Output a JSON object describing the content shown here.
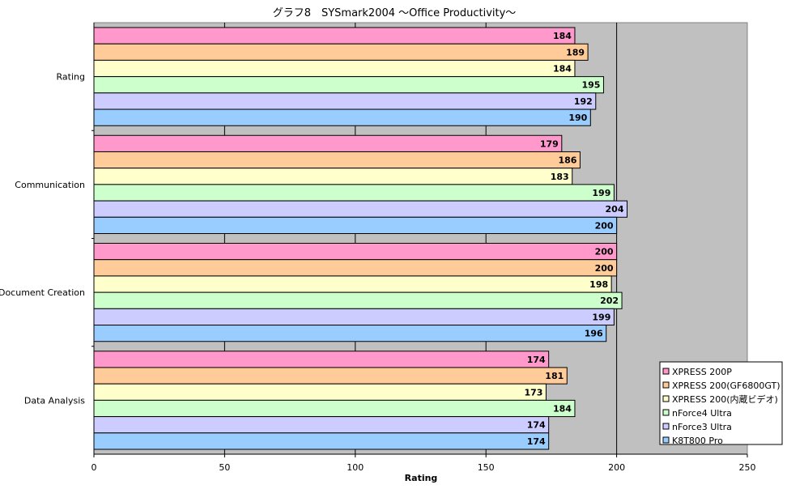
{
  "chart_data": {
    "type": "bar",
    "orientation": "horizontal",
    "title": "グラフ8　SYSmark2004 ～Office Productivity～",
    "xlabel": "Rating",
    "ylabel": "",
    "xlim": [
      0,
      250
    ],
    "xticks": [
      0,
      50,
      100,
      150,
      200,
      250
    ],
    "grid": true,
    "legend_position": "bottom-right",
    "categories": [
      "Rating",
      "Communication",
      "Document Creation",
      "Data Analysis"
    ],
    "series": [
      {
        "name": "XPRESS 200P",
        "color": "#ff99cc",
        "values": [
          184,
          179,
          200,
          174
        ]
      },
      {
        "name": "XPRESS 200(GF6800GT)",
        "color": "#ffcc99",
        "values": [
          189,
          186,
          200,
          181
        ]
      },
      {
        "name": "XPRESS 200(内蔵ビデオ)",
        "color": "#ffffcc",
        "values": [
          184,
          183,
          198,
          173
        ]
      },
      {
        "name": "nForce4 Ultra",
        "color": "#ccffcc",
        "values": [
          195,
          199,
          202,
          184
        ]
      },
      {
        "name": "nForce3 Ultra",
        "color": "#ccccff",
        "values": [
          192,
          204,
          199,
          174
        ]
      },
      {
        "name": "K8T800 Pro",
        "color": "#99ccff",
        "values": [
          190,
          200,
          196,
          174
        ]
      }
    ],
    "plot_background": "#c0c0c0"
  }
}
